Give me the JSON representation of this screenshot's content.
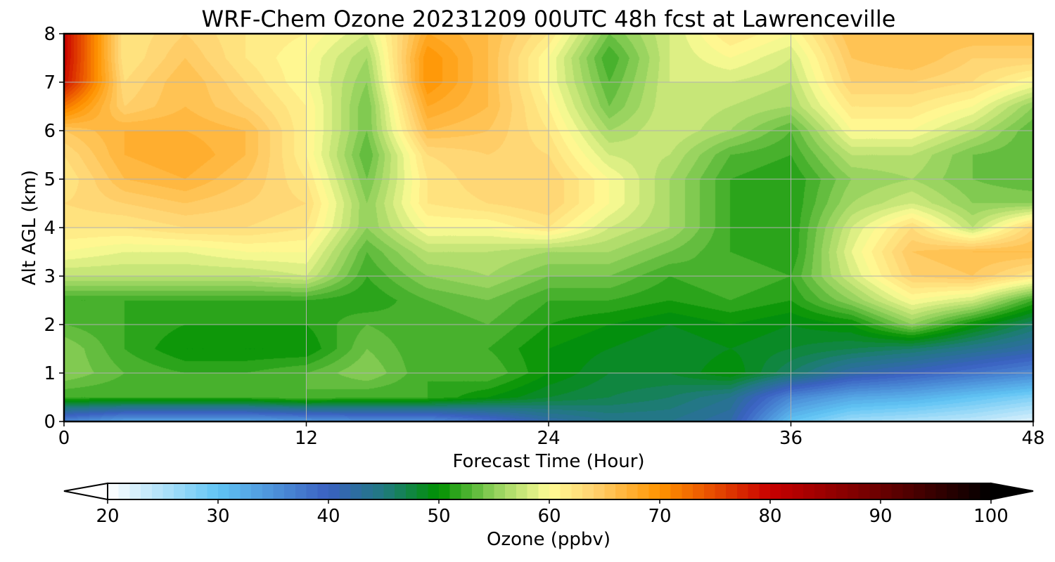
{
  "chart_data": {
    "type": "heatmap",
    "title": "WRF-Chem Ozone  20231209 00UTC 48h fcst at Lawrenceville",
    "xlabel": "Forecast Time (Hour)",
    "ylabel": "Alt AGL (km)",
    "xlim": [
      0,
      48
    ],
    "ylim": [
      0,
      8
    ],
    "xticks": [
      0,
      12,
      24,
      36,
      48
    ],
    "yticks": [
      0,
      1,
      2,
      3,
      4,
      5,
      6,
      7,
      8
    ],
    "grid": true,
    "x_hours": [
      0,
      3,
      6,
      9,
      12,
      15,
      18,
      21,
      24,
      27,
      30,
      33,
      36,
      39,
      42,
      45,
      48
    ],
    "y_km": [
      0,
      0.5,
      1,
      1.5,
      2,
      2.5,
      3,
      3.5,
      4,
      4.5,
      5,
      5.5,
      6,
      6.5,
      7,
      7.5,
      8
    ],
    "z_ppbv": [
      [
        36,
        33,
        33,
        33,
        34,
        35,
        35,
        38,
        42,
        44,
        44,
        42,
        30,
        26,
        25,
        24,
        22
      ],
      [
        52,
        52,
        52,
        52,
        53,
        52,
        52,
        50,
        48,
        47,
        46,
        44,
        36,
        33,
        32,
        30,
        28
      ],
      [
        55,
        53,
        52,
        52,
        53,
        55,
        52,
        53,
        50,
        48,
        48,
        50,
        46,
        42,
        40,
        38,
        36
      ],
      [
        55,
        52,
        50,
        50,
        50,
        54,
        52,
        52,
        50,
        49,
        48,
        49,
        48,
        47,
        46,
        44,
        42
      ],
      [
        53,
        52,
        51,
        51,
        51,
        53,
        52,
        53,
        51,
        50,
        49,
        50,
        49,
        50,
        55,
        50,
        46
      ],
      [
        52,
        52,
        52,
        52,
        52,
        51,
        53,
        54,
        52,
        52,
        51,
        52,
        51,
        55,
        60,
        58,
        52
      ],
      [
        57,
        57,
        57,
        57,
        58,
        52,
        55,
        56,
        54,
        54,
        52,
        53,
        52,
        58,
        64,
        65,
        62
      ],
      [
        60,
        59,
        59,
        60,
        60,
        53,
        57,
        57,
        56,
        56,
        54,
        52,
        51,
        59,
        65,
        66,
        66
      ],
      [
        62,
        62,
        63,
        63,
        62,
        55,
        60,
        60,
        62,
        58,
        56,
        52,
        51,
        58,
        63,
        57,
        64
      ],
      [
        63,
        64,
        65,
        64,
        63,
        55,
        62,
        63,
        64,
        60,
        56,
        52,
        51,
        56,
        58,
        55,
        55
      ],
      [
        62,
        66,
        67,
        65,
        62,
        54,
        62,
        64,
        64,
        60,
        56,
        52,
        51,
        55,
        56,
        54,
        53
      ],
      [
        63,
        67,
        68,
        66,
        61,
        53,
        63,
        64,
        63,
        58,
        57,
        53,
        52,
        57,
        57,
        54,
        53
      ],
      [
        65,
        67,
        67,
        66,
        61,
        54,
        66,
        65,
        62,
        56,
        58,
        56,
        53,
        60,
        60,
        57,
        53
      ],
      [
        72,
        64,
        66,
        64,
        61,
        54,
        68,
        66,
        61,
        54,
        58,
        57,
        56,
        62,
        62,
        60,
        55
      ],
      [
        79,
        63,
        66,
        63,
        60,
        55,
        70,
        66,
        60,
        53,
        58,
        58,
        57,
        64,
        64,
        63,
        60
      ],
      [
        80,
        62,
        65,
        62,
        60,
        56,
        70,
        66,
        60,
        52,
        58,
        60,
        58,
        65,
        66,
        64,
        64
      ],
      [
        80,
        62,
        64,
        62,
        61,
        58,
        68,
        66,
        62,
        54,
        58,
        62,
        60,
        66,
        66,
        66,
        66
      ]
    ],
    "colorbar": {
      "label": "Ozone  (ppbv)",
      "min": 20,
      "max": 100,
      "ticks": [
        20,
        30,
        40,
        50,
        60,
        70,
        80,
        90,
        100
      ],
      "extend": "both",
      "colormap": [
        [
          20,
          "#ffffff"
        ],
        [
          30,
          "#60c4f4"
        ],
        [
          40,
          "#3a60c0"
        ],
        [
          45,
          "#207a80"
        ],
        [
          50,
          "#009100"
        ],
        [
          55,
          "#8fd05a"
        ],
        [
          60,
          "#fffc96"
        ],
        [
          64,
          "#ffd270"
        ],
        [
          70,
          "#ff9400"
        ],
        [
          75,
          "#e64a00"
        ],
        [
          80,
          "#c80000"
        ],
        [
          90,
          "#6a0000"
        ],
        [
          100,
          "#000000"
        ]
      ]
    }
  }
}
